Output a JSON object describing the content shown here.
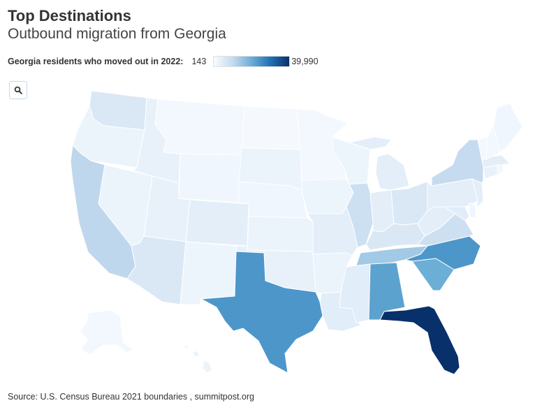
{
  "header": {
    "title": "Top Destinations",
    "subtitle": "Outbound migration from Georgia"
  },
  "legend": {
    "title": "Georgia residents who moved out in 2022:",
    "min_label": "143",
    "max_label": "39,990",
    "min_value": 143,
    "max_value": 39990,
    "color_low": "#f7fbff",
    "color_high": "#08306b"
  },
  "toolbar": {
    "zoom_icon": "search-icon"
  },
  "source": "Source: U.S. Census Bureau 2021 boundaries , summitpost.org",
  "map_data": {
    "type": "choropleth",
    "region": "United States",
    "origin_state": "Georgia",
    "levels": [
      {
        "state": "Florida",
        "level": 1.0
      },
      {
        "state": "Texas",
        "level": 0.55
      },
      {
        "state": "North Carolina",
        "level": 0.55
      },
      {
        "state": "Alabama",
        "level": 0.5
      },
      {
        "state": "South Carolina",
        "level": 0.45
      },
      {
        "state": "Tennessee",
        "level": 0.3
      },
      {
        "state": "California",
        "level": 0.22
      },
      {
        "state": "New York",
        "level": 0.2
      },
      {
        "state": "Illinois",
        "level": 0.17
      },
      {
        "state": "Virginia",
        "level": 0.17
      },
      {
        "state": "Washington",
        "level": 0.12
      },
      {
        "state": "Arizona",
        "level": 0.12
      },
      {
        "state": "Kentucky",
        "level": 0.12
      },
      {
        "state": "Ohio",
        "level": 0.12
      },
      {
        "state": "Louisiana",
        "level": 0.09
      },
      {
        "state": "Mississippi",
        "level": 0.09
      },
      {
        "state": "Maryland",
        "level": 0.09
      },
      {
        "state": "Michigan",
        "level": 0.08
      },
      {
        "state": "Indiana",
        "level": 0.08
      },
      {
        "state": "Pennsylvania",
        "level": 0.08
      },
      {
        "state": "Colorado",
        "level": 0.08
      },
      {
        "state": "Missouri",
        "level": 0.08
      },
      {
        "state": "West Virginia",
        "level": 0.08
      },
      {
        "state": "New Jersey",
        "level": 0.08
      },
      {
        "state": "Massachusetts",
        "level": 0.08
      },
      {
        "state": "Utah",
        "level": 0.06
      },
      {
        "state": "Oregon",
        "level": 0.05
      },
      {
        "state": "Idaho",
        "level": 0.06
      },
      {
        "state": "Nevada",
        "level": 0.05
      },
      {
        "state": "New Mexico",
        "level": 0.04
      },
      {
        "state": "Oklahoma",
        "level": 0.06
      },
      {
        "state": "Kansas",
        "level": 0.05
      },
      {
        "state": "Arkansas",
        "level": 0.05
      },
      {
        "state": "Montana",
        "level": 0.02
      },
      {
        "state": "Wyoming",
        "level": 0.03
      },
      {
        "state": "North Dakota",
        "level": 0.01
      },
      {
        "state": "South Dakota",
        "level": 0.05
      },
      {
        "state": "Nebraska",
        "level": 0.03
      },
      {
        "state": "Minnesota",
        "level": 0.02
      },
      {
        "state": "Iowa",
        "level": 0.04
      },
      {
        "state": "Wisconsin",
        "level": 0.04
      },
      {
        "state": "Maine",
        "level": 0.03
      },
      {
        "state": "New Hampshire",
        "level": 0.02
      },
      {
        "state": "Vermont",
        "level": 0.02
      },
      {
        "state": "Connecticut",
        "level": 0.06
      },
      {
        "state": "Rhode Island",
        "level": 0.02
      },
      {
        "state": "Delaware",
        "level": 0.03
      },
      {
        "state": "Alaska",
        "level": 0.02
      },
      {
        "state": "Hawaii",
        "level": 0.05
      },
      {
        "state": "Georgia",
        "level": null
      }
    ]
  }
}
